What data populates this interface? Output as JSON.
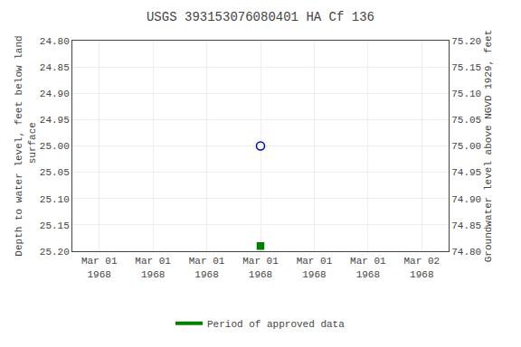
{
  "chart_data": {
    "type": "scatter",
    "title": "USGS 393153076080401 HA Cf 136",
    "categories": [
      "Mar 01\n1968",
      "Mar 01\n1968",
      "Mar 01\n1968",
      "Mar 01\n1968",
      "Mar 01\n1968",
      "Mar 01\n1968",
      "Mar 02\n1968"
    ],
    "y_label": "Depth to water level, feet below land\n surface",
    "y2_label": "Groundwater level above NGVD 1929, feet",
    "ylim": [
      25.2,
      24.8
    ],
    "yticks": [
      {
        "value": 24.8,
        "label": "24.80"
      },
      24.85,
      {
        "value": 24.9,
        "label": "24.90"
      },
      24.95,
      {
        "value": 25.0,
        "label": "25.00"
      },
      25.05,
      {
        "value": 25.1,
        "label": "25.10"
      },
      25.15,
      {
        "value": 25.2,
        "label": "25.20"
      }
    ],
    "y2lim": [
      74.8,
      75.2
    ],
    "y2ticks": [
      {
        "value": 75.2,
        "label": "75.20"
      },
      75.15,
      {
        "value": 75.1,
        "label": "75.10"
      },
      75.05,
      {
        "value": 75.0,
        "label": "75.00"
      },
      74.95,
      {
        "value": 74.9,
        "label": "74.90"
      },
      74.85,
      {
        "value": 74.8,
        "label": "74.80"
      }
    ],
    "grid": true,
    "legend": "bottom",
    "series": [
      {
        "type": "scatter",
        "color": "#0000cc",
        "marker": "circle-open",
        "values": [
          null,
          null,
          null,
          25.0,
          null,
          null,
          null
        ]
      },
      {
        "type": "scatter",
        "color": "#008000",
        "marker": "square",
        "values": [
          null,
          null,
          null,
          25.19,
          null,
          null,
          null
        ]
      },
      {
        "type": "line",
        "name": "Period of approved data",
        "color": "#008000",
        "line_style": "solid",
        "axis": "y2",
        "values": [
          null,
          null,
          null,
          null,
          null,
          null,
          null
        ]
      }
    ]
  }
}
